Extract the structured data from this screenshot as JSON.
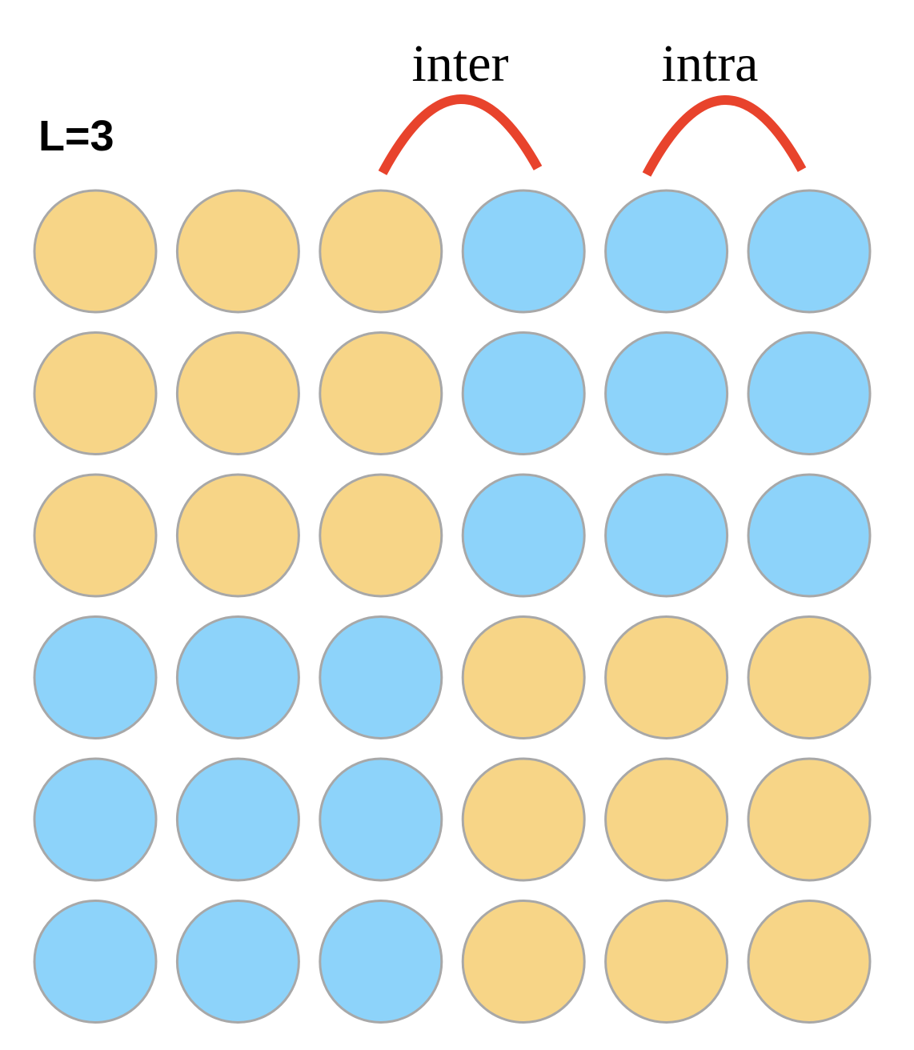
{
  "diagram": {
    "size_label": "L=3",
    "arcs": [
      {
        "label": "inter"
      },
      {
        "label": "intra"
      }
    ],
    "colors": {
      "orange": "#F7D587",
      "blue": "#8DD3FA",
      "circle_border": "#A8A8A8",
      "arc": "#E8432C"
    },
    "grid": [
      [
        "orange",
        "orange",
        "orange",
        "blue",
        "blue",
        "blue"
      ],
      [
        "orange",
        "orange",
        "orange",
        "blue",
        "blue",
        "blue"
      ],
      [
        "orange",
        "orange",
        "orange",
        "blue",
        "blue",
        "blue"
      ],
      [
        "blue",
        "blue",
        "blue",
        "orange",
        "orange",
        "orange"
      ],
      [
        "blue",
        "blue",
        "blue",
        "orange",
        "orange",
        "orange"
      ],
      [
        "blue",
        "blue",
        "blue",
        "orange",
        "orange",
        "orange"
      ]
    ]
  }
}
